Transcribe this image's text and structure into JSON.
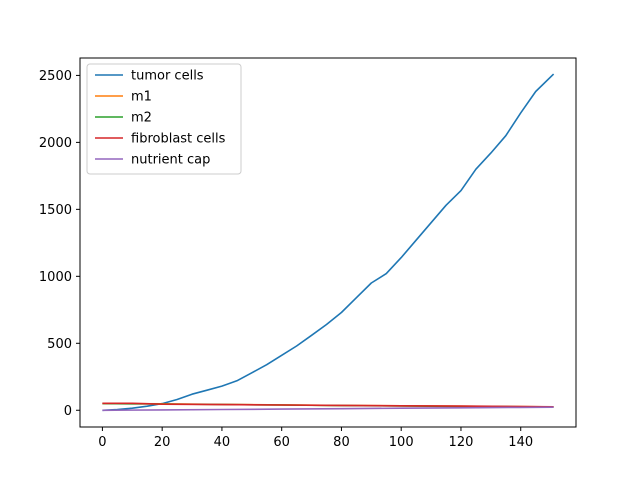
{
  "chart_data": {
    "type": "line",
    "title": "",
    "xlabel": "",
    "ylabel": "",
    "xlim": [
      -7.5,
      158.5
    ],
    "ylim": [
      -125,
      2630
    ],
    "xticks": [
      0,
      20,
      40,
      60,
      80,
      100,
      120,
      140
    ],
    "yticks": [
      0,
      500,
      1000,
      1500,
      2000,
      2500
    ],
    "xtick_labels": [
      "0",
      "20",
      "40",
      "60",
      "80",
      "100",
      "120",
      "140"
    ],
    "ytick_labels": [
      "0",
      "500",
      "1000",
      "1500",
      "2000",
      "2500"
    ],
    "grid": false,
    "legend_position": "top-left",
    "series": [
      {
        "name": "tumor cells",
        "color": "#1f77b4",
        "x": [
          0,
          5,
          10,
          15,
          20,
          25,
          30,
          35,
          40,
          45,
          50,
          55,
          60,
          65,
          70,
          75,
          80,
          85,
          90,
          95,
          100,
          105,
          110,
          115,
          120,
          125,
          130,
          135,
          140,
          145,
          151
        ],
        "y": [
          0,
          5,
          15,
          30,
          50,
          80,
          120,
          150,
          180,
          220,
          280,
          340,
          410,
          480,
          560,
          640,
          730,
          840,
          950,
          1020,
          1140,
          1270,
          1400,
          1530,
          1640,
          1800,
          1920,
          2050,
          2220,
          2380,
          2510
        ]
      },
      {
        "name": "m1",
        "color": "#ff7f0e",
        "x": [
          0,
          20,
          40,
          60,
          80,
          100,
          120,
          140,
          151
        ],
        "y": [
          50,
          48,
          44,
          40,
          36,
          33,
          30,
          27,
          25
        ]
      },
      {
        "name": "m2",
        "color": "#2ca02c",
        "x": [
          0,
          20,
          40,
          60,
          80,
          100,
          120,
          140,
          151
        ],
        "y": [
          50,
          47,
          43,
          39,
          35,
          32,
          29,
          26,
          24
        ]
      },
      {
        "name": "fibroblast cells",
        "color": "#d62728",
        "x": [
          0,
          10,
          20,
          40,
          60,
          80,
          100,
          120,
          140,
          151
        ],
        "y": [
          52,
          52,
          45,
          42,
          39,
          36,
          33,
          31,
          28,
          26
        ]
      },
      {
        "name": "nutrient cap",
        "color": "#9467bd",
        "x": [
          0,
          20,
          40,
          60,
          80,
          100,
          120,
          140,
          151
        ],
        "y": [
          0,
          3,
          6,
          9,
          12,
          15,
          18,
          21,
          23
        ]
      }
    ]
  }
}
